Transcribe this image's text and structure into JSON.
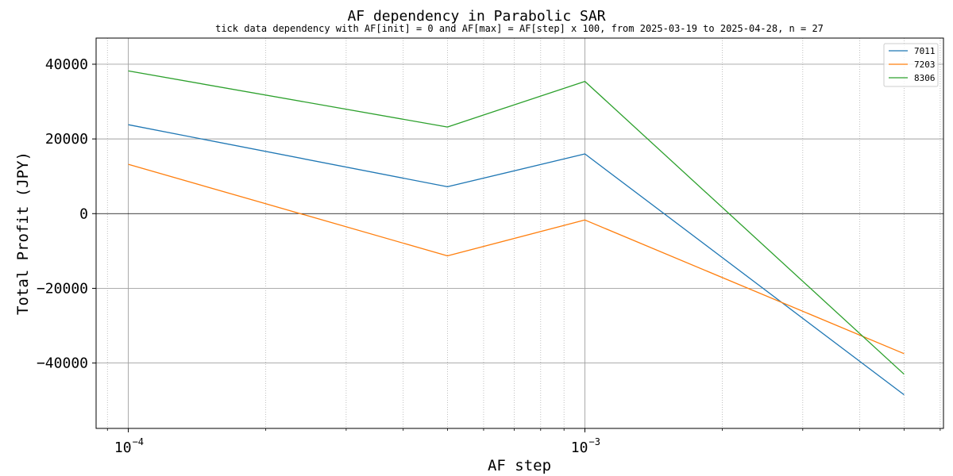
{
  "chart_data": {
    "type": "line",
    "title": "AF dependency in Parabolic SAR",
    "subtitle": "tick data dependency with AF[init] = 0 and AF[max] = AF[step] x 100, from 2025-03-19 to 2025-04-28, n = 27",
    "xlabel": "AF step",
    "ylabel": "Total Profit (JPY)",
    "x_scale": "log",
    "xlim": [
      8.5e-05,
      0.0061
    ],
    "ylim": [
      -57500,
      47000
    ],
    "x": [
      0.0001,
      0.0005,
      0.001,
      0.005
    ],
    "x_ticks": [
      {
        "value": 0.0001,
        "base": "10",
        "exp": "−4"
      },
      {
        "value": 0.001,
        "base": "10",
        "exp": "−3"
      }
    ],
    "y_ticks": [
      {
        "value": 40000,
        "label": "40000"
      },
      {
        "value": 20000,
        "label": "20000"
      },
      {
        "value": 0,
        "label": "0"
      },
      {
        "value": -20000,
        "label": "−20000"
      },
      {
        "value": -40000,
        "label": "−40000"
      }
    ],
    "grid": true,
    "zero_line": true,
    "legend_position": "top-right",
    "series": [
      {
        "name": "7011",
        "color": "#1f77b4",
        "values": [
          23800,
          7200,
          16000,
          -48500
        ]
      },
      {
        "name": "7203",
        "color": "#ff7f0e",
        "values": [
          13200,
          -11300,
          -1700,
          -37500
        ]
      },
      {
        "name": "8306",
        "color": "#2ca02c",
        "values": [
          38200,
          23200,
          35400,
          -43000
        ]
      }
    ]
  }
}
